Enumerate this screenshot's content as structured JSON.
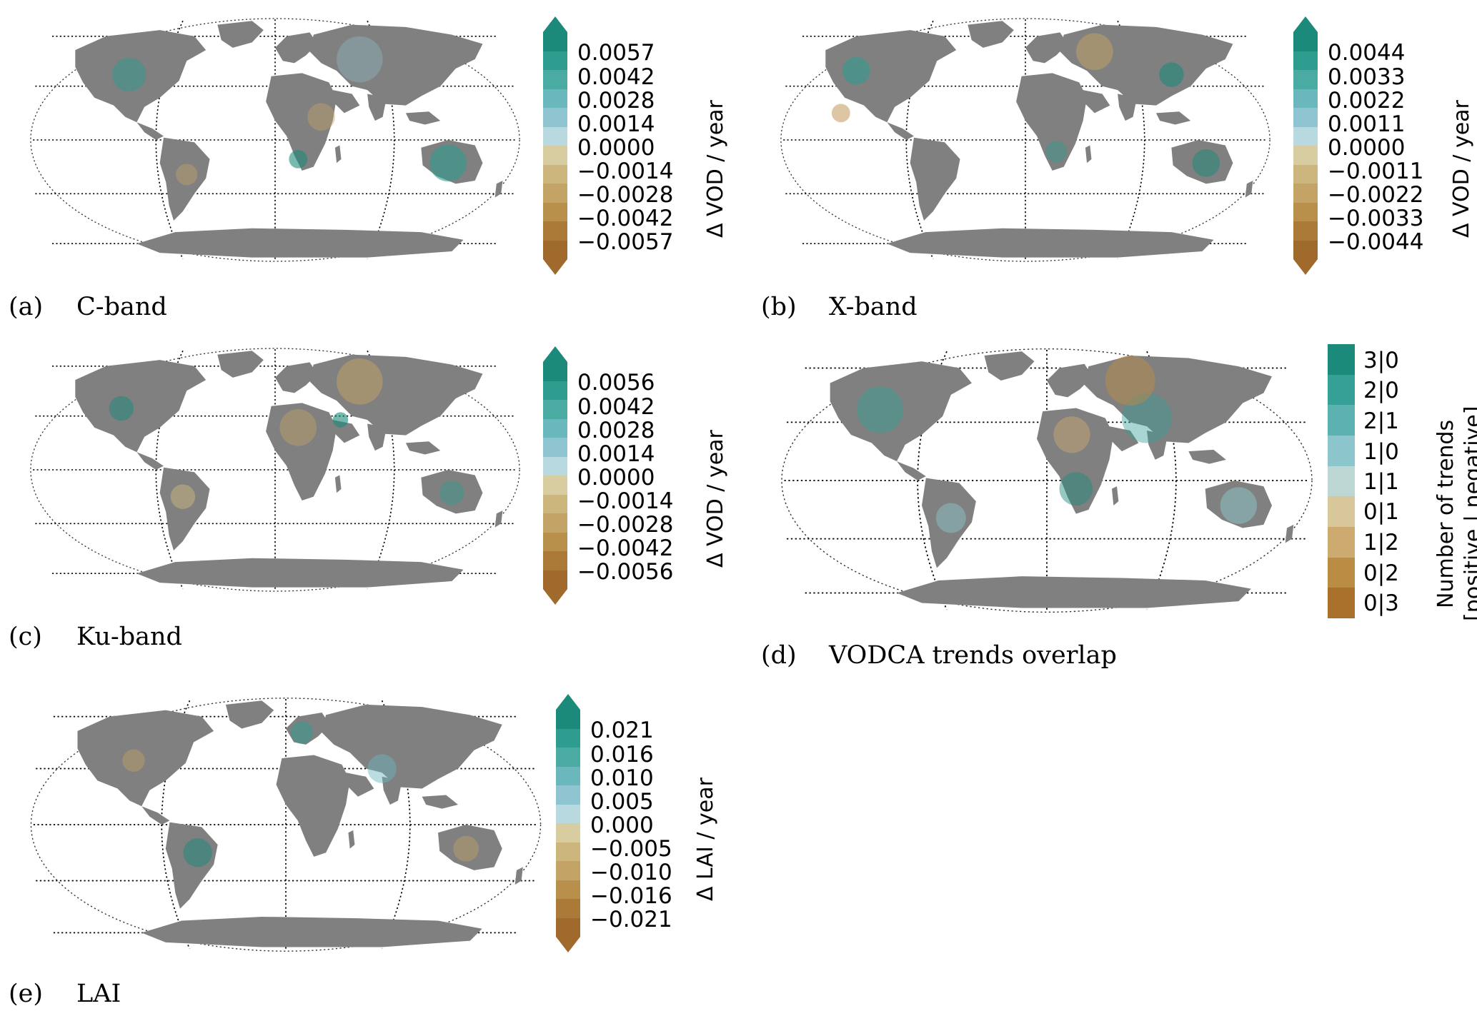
{
  "panels": [
    {
      "id": "a",
      "letter": "(a)",
      "title": "C-band",
      "colorbar_label": "Δ VOD / year",
      "ticks": [
        "0.0057",
        "0.0042",
        "0.0028",
        "0.0014",
        "0.0000",
        "−0.0014",
        "−0.0028",
        "−0.0042",
        "−0.0057"
      ],
      "extend_arrows": true
    },
    {
      "id": "b",
      "letter": "(b)",
      "title": "X-band",
      "colorbar_label": "Δ VOD / year",
      "ticks": [
        "0.0044",
        "0.0033",
        "0.0022",
        "0.0011",
        "0.0000",
        "−0.0011",
        "−0.0022",
        "−0.0033",
        "−0.0044"
      ],
      "extend_arrows": true
    },
    {
      "id": "c",
      "letter": "(c)",
      "title": "Ku-band",
      "colorbar_label": "Δ VOD / year",
      "ticks": [
        "0.0056",
        "0.0042",
        "0.0028",
        "0.0014",
        "0.0000",
        "−0.0014",
        "−0.0028",
        "−0.0042",
        "−0.0056"
      ],
      "extend_arrows": true
    },
    {
      "id": "d",
      "letter": "(d)",
      "title": "VODCA trends overlap",
      "colorbar_label": [
        "Number of trends",
        "[positive | negative]"
      ],
      "ticks": [
        "3|0",
        "2|0",
        "2|1",
        "1|0",
        "1|1",
        "0|1",
        "1|2",
        "0|2",
        "0|3"
      ],
      "extend_arrows": false
    },
    {
      "id": "e",
      "letter": "(e)",
      "title": "LAI",
      "colorbar_label": "Δ LAI / year",
      "ticks": [
        "0.021",
        "0.016",
        "0.010",
        "0.005",
        "0.000",
        "−0.005",
        "−0.010",
        "−0.016",
        "−0.021"
      ],
      "extend_arrows": true
    }
  ],
  "colors": {
    "diverging": [
      "#1b8a7a",
      "#2e9d8f",
      "#4aaba3",
      "#6ab7bd",
      "#8fc5d0",
      "#b8d9e0",
      "#d8cda0",
      "#ccb67e",
      "#c4a366",
      "#b98f4c",
      "#ac7a38",
      "#a06a2c"
    ],
    "overlap": [
      "#1b8a7a",
      "#35a096",
      "#5cb2b0",
      "#8cc6cc",
      "#bcd7d4",
      "#d8c79a",
      "#cdaa70",
      "#bb8c43",
      "#a9712c"
    ],
    "land": "#808080"
  }
}
